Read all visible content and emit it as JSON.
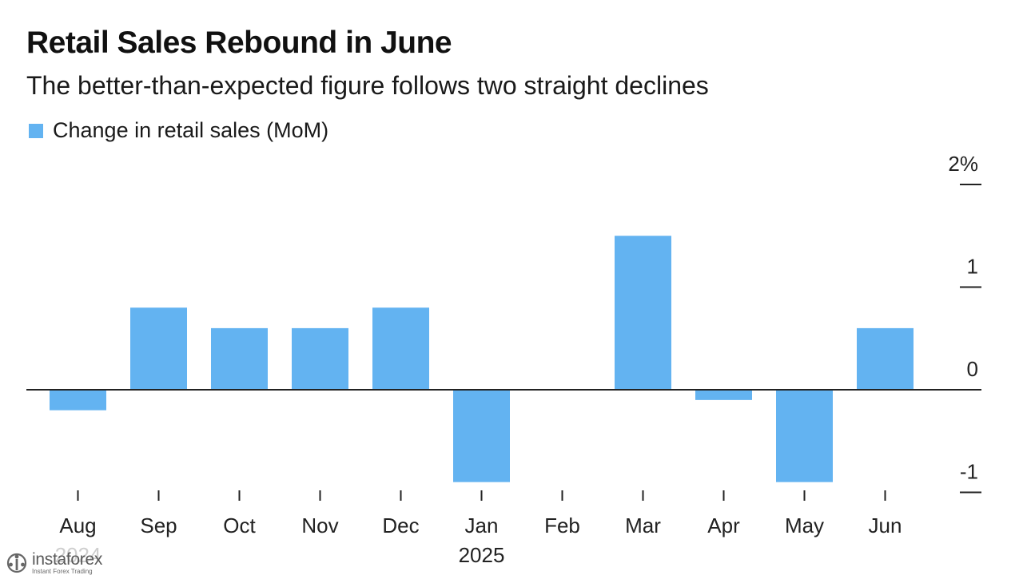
{
  "chart_data": {
    "type": "bar",
    "title": "Retail Sales Rebound in June",
    "subtitle": "The better-than-expected figure follows two straight declines",
    "legend": [
      "Change in retail sales (MoM)"
    ],
    "categories": [
      "Aug",
      "Sep",
      "Oct",
      "Nov",
      "Dec",
      "Jan",
      "Feb",
      "Mar",
      "Apr",
      "May",
      "Jun"
    ],
    "year_labels": [
      "2024",
      "",
      "",
      "",
      "",
      "2025",
      "",
      "",
      "",
      "",
      ""
    ],
    "series": [
      {
        "name": "Change in retail sales (MoM)",
        "values": [
          -0.2,
          0.8,
          0.6,
          0.6,
          0.8,
          -0.9,
          0.0,
          1.5,
          -0.1,
          -0.9,
          0.6
        ]
      }
    ],
    "yticks": [
      2,
      1,
      0,
      -1
    ],
    "ytick_labels": [
      "2%",
      "1",
      "0",
      "-1"
    ],
    "ylim": [
      -1.05,
      2.0
    ],
    "xlabel": "",
    "ylabel": "",
    "grid": false,
    "legend_position": "top-left",
    "bar_color": "#63b3f1"
  },
  "watermark": {
    "brand": "instaforex",
    "tagline": "Instant Forex Trading"
  }
}
